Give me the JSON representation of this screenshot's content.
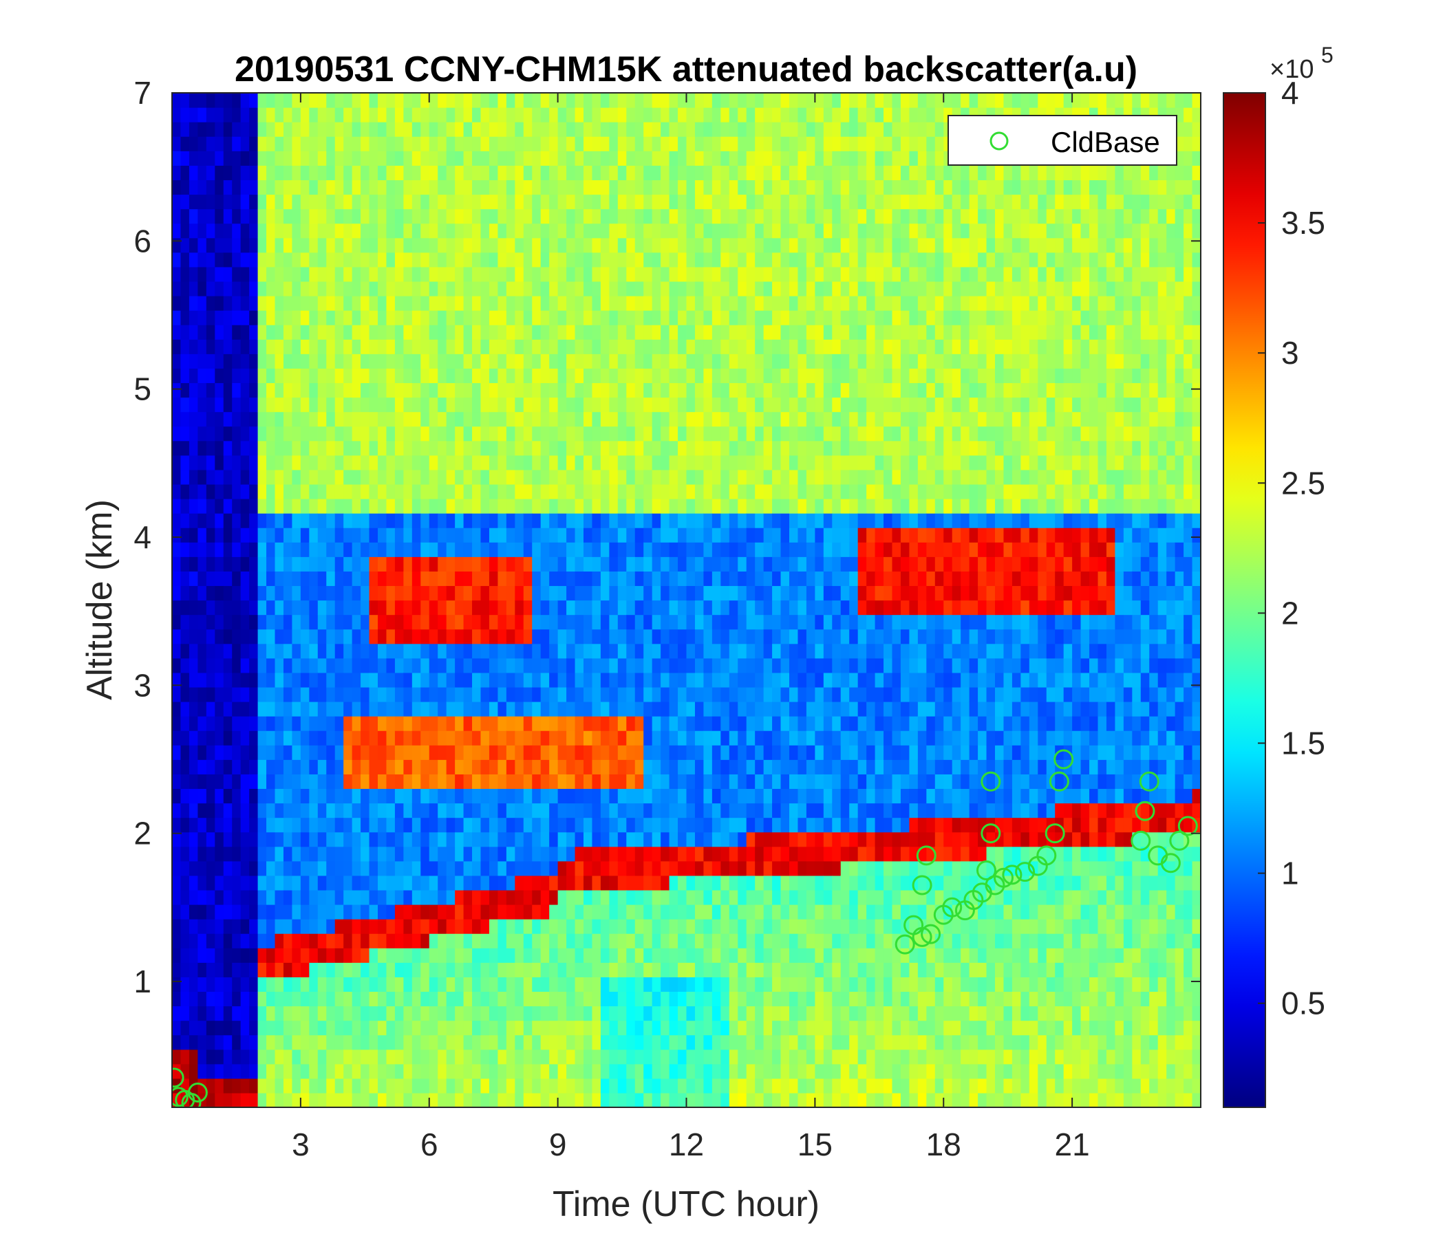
{
  "chart_data": {
    "type": "heatmap",
    "title": "20190531 CCNY-CHM15K attenuated backscatter(a.u)",
    "xlabel": "Time (UTC hour)",
    "ylabel": "Altitude (km)",
    "xlim": [
      0,
      24
    ],
    "ylim": [
      0.15,
      7
    ],
    "x_ticks": [
      3,
      6,
      9,
      12,
      15,
      18,
      21
    ],
    "y_ticks": [
      1,
      2,
      3,
      4,
      5,
      6,
      7
    ],
    "colormap": "jet",
    "colorbar": {
      "range": [
        0.1,
        4
      ],
      "ticks": [
        0.5,
        1,
        1.5,
        2,
        2.5,
        3,
        3.5,
        4
      ],
      "tick_labels": [
        "0.5",
        "1",
        "1.5",
        "2",
        "2.5",
        "3",
        "3.5",
        "4"
      ],
      "multiplier_prefix": "×10",
      "multiplier_exponent": "5"
    },
    "grid": false,
    "legend": {
      "placement": "top-right",
      "entries": [
        "CldBase"
      ]
    },
    "series": [
      {
        "name": "CldBase",
        "marker": "circle",
        "color": "#33dd33",
        "x": [
          0.05,
          0.15,
          0.3,
          0.45,
          0.6,
          17.1,
          17.3,
          17.5,
          17.7,
          17.5,
          17.6,
          18.0,
          18.2,
          18.5,
          18.7,
          18.9,
          19.0,
          19.1,
          19.1,
          19.2,
          19.4,
          19.6,
          19.9,
          20.2,
          20.4,
          20.6,
          20.7,
          20.8,
          22.6,
          22.7,
          22.8,
          23.0,
          23.3,
          23.5,
          23.7
        ],
        "y": [
          0.35,
          0.22,
          0.2,
          0.18,
          0.25,
          1.25,
          1.38,
          1.3,
          1.32,
          1.65,
          1.85,
          1.45,
          1.5,
          1.48,
          1.55,
          1.6,
          1.75,
          2.0,
          2.35,
          1.65,
          1.7,
          1.72,
          1.74,
          1.78,
          1.85,
          2.0,
          2.35,
          2.5,
          1.95,
          2.15,
          2.35,
          1.85,
          1.8,
          1.95,
          2.05
        ]
      }
    ]
  }
}
